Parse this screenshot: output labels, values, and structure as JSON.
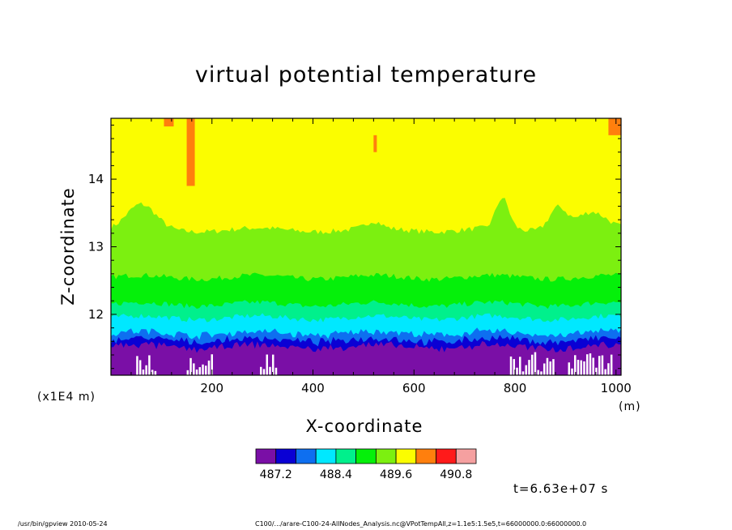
{
  "chart_data": {
    "type": "contour",
    "title": "virtual potential temperature",
    "xlabel": "X-coordinate",
    "ylabel": "Z-coordinate",
    "x_unit": "(m)",
    "y_unit": "(x1E4 m)",
    "xlim": [
      0,
      1010
    ],
    "ylim": [
      11.1,
      14.9
    ],
    "x_ticks": [
      200,
      400,
      600,
      800,
      1000
    ],
    "y_ticks": [
      12,
      13,
      14
    ],
    "colorbar": {
      "levels": [
        487.2,
        487.4,
        487.6,
        487.8,
        488.0,
        488.2,
        488.4,
        488.6,
        488.8,
        489.0,
        489.2,
        489.4,
        489.6,
        489.8,
        490.0,
        490.2,
        490.4,
        490.6,
        490.8,
        491.0,
        491.2
      ],
      "labeled_levels": [
        487.2,
        488.4,
        489.6,
        490.8
      ],
      "colors": [
        "#7a0fa6",
        "#0a00d4",
        "#0e6ff0",
        "#00e8ff",
        "#00f08c",
        "#05f00a",
        "#7cf010",
        "#fbfd00",
        "#ff7f0d",
        "#ff1a1a",
        "#f5a0a0"
      ],
      "level_steps": [
        487.2,
        487.6,
        488.0,
        488.4,
        488.8,
        489.2,
        489.6,
        490.0,
        490.4,
        490.8
      ]
    },
    "bands": [
      {
        "color": "#7a0fa6",
        "z_top": 11.52
      },
      {
        "color": "#0a00d4",
        "z_top": 11.62
      },
      {
        "color": "#0e6ff0",
        "z_top": 11.72
      },
      {
        "color": "#00e8ff",
        "z_top": 11.95
      },
      {
        "color": "#00f08c",
        "z_top": 12.15
      },
      {
        "color": "#05f00a",
        "z_top": 12.55
      },
      {
        "color": "#7cf010",
        "z_top": 13.25
      },
      {
        "color": "#fbfd00",
        "z_top": 14.9
      }
    ]
  },
  "time_label": "t=6.63e+07 s",
  "footer_left": "/usr/bin/gpview   2010-05-24",
  "footer_right": "C100/.../arare-C100-24-AllNodes_Analysis.nc@VPotTempAll,z=1.1e5:1.5e5,t=66000000.0:66000000.0"
}
